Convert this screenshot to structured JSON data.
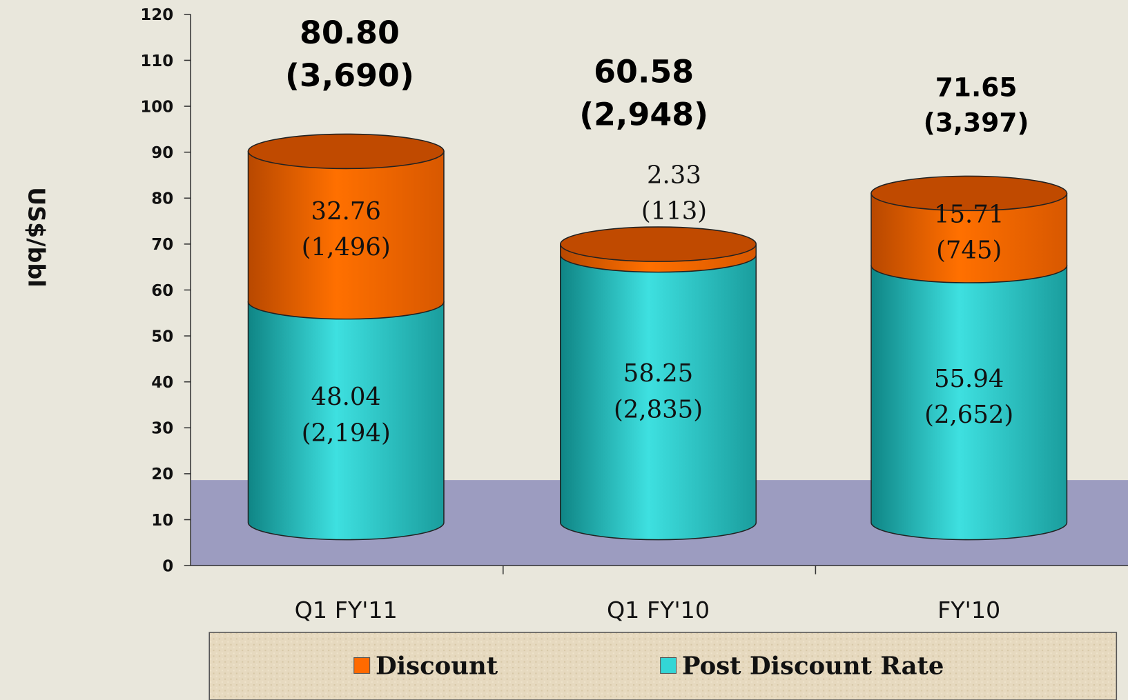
{
  "chart_data": {
    "type": "stacked-cylinder",
    "ylabel": "US$/bbl",
    "categories": [
      "Q1 FY'11",
      "Q1 FY'10",
      "FY'10"
    ],
    "ylim": [
      0,
      120
    ],
    "yticks": [
      0,
      10,
      20,
      30,
      40,
      50,
      60,
      70,
      80,
      90,
      100,
      110,
      120
    ],
    "series": [
      {
        "name": "Post Discount Rate",
        "color": "#33d6d6",
        "values": [
          48.04,
          58.25,
          55.94
        ],
        "value_labels": [
          "48.04",
          "58.25",
          "55.94"
        ],
        "amount_labels": [
          "(2,194)",
          "(2,835)",
          "(2,652)"
        ]
      },
      {
        "name": "Discount",
        "color": "#ff6a00",
        "values": [
          32.76,
          2.33,
          15.71
        ],
        "value_labels": [
          "32.76",
          "2.33",
          "15.71"
        ],
        "amount_labels": [
          "(1,496)",
          "(113)",
          "(745)"
        ]
      }
    ],
    "totals": {
      "values": [
        80.8,
        60.58,
        71.65
      ],
      "value_labels": [
        "80.80",
        "60.58",
        "71.65"
      ],
      "amount_labels": [
        "(3,690)",
        "(2,948)",
        "(3,397)"
      ]
    },
    "legend_order": [
      1,
      0
    ]
  }
}
